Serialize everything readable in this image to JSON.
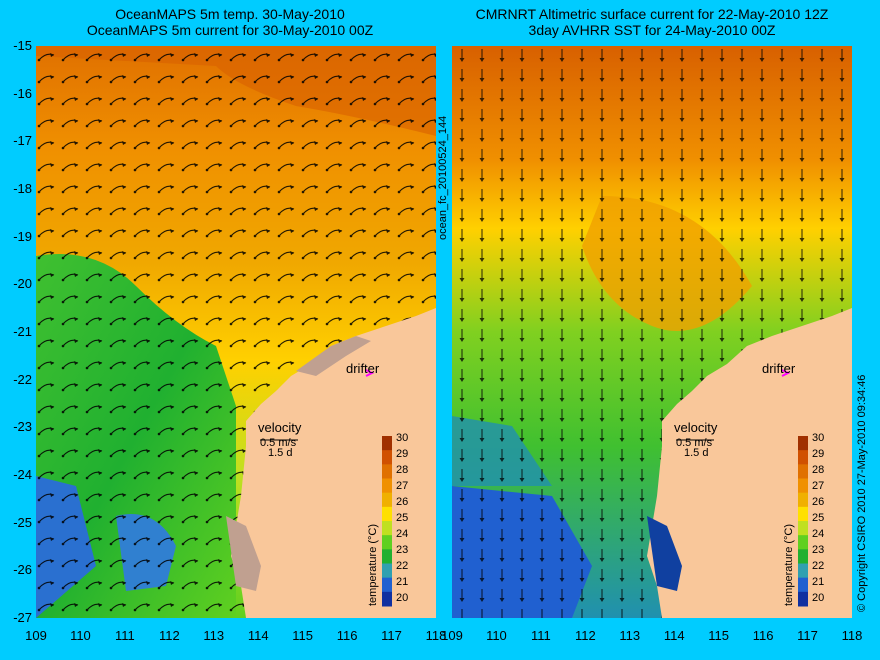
{
  "titles": {
    "left_line1": "OceanMAPS 5m temp. 30-May-2010",
    "left_line2": "OceanMAPS 5m current for 30-May-2010 00Z",
    "right_line1": "CMRNRT Altimetric surface current for 22-May-2010 12Z",
    "right_line2": "3day AVHRR SST for 24-May-2010 00Z"
  },
  "axes": {
    "lat_ticks": [
      "-15",
      "-16",
      "-17",
      "-18",
      "-19",
      "-20",
      "-21",
      "-22",
      "-23",
      "-24",
      "-25",
      "-26",
      "-27"
    ],
    "lon_ticks": [
      "109",
      "110",
      "111",
      "112",
      "113",
      "114",
      "115",
      "116",
      "117",
      "118"
    ]
  },
  "labels": {
    "drifter": "drifter",
    "velocity": "velocity",
    "velocity_scale": "0.5 m/s",
    "velocity_time": "1.5 d"
  },
  "colorbar": {
    "label": "temperature (°C)",
    "ticks": [
      "30",
      "29",
      "28",
      "27",
      "26",
      "25",
      "24",
      "23",
      "22",
      "21",
      "20"
    ],
    "colors": [
      "#a03000",
      "#d05000",
      "#e07000",
      "#f09000",
      "#f0b000",
      "#ffe000",
      "#c0e020",
      "#60d020",
      "#20b030",
      "#30a0b0",
      "#2060d0",
      "#1030a0"
    ]
  },
  "sidebar": {
    "filename": "ocean_fc_20100524_144",
    "copyright": "© Copyright CSIRO 2010   27-May-2010 09:34:46"
  },
  "colors": {
    "land": "#f9c79a",
    "background": "#00ccff",
    "drifter_marker": "#ff00ff"
  }
}
